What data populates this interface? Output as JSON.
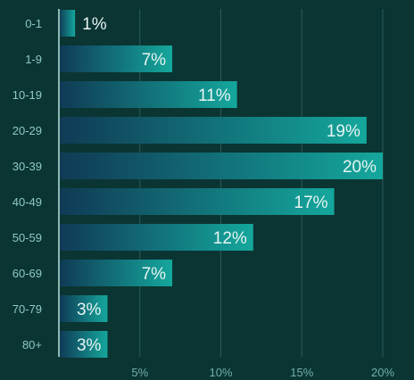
{
  "chart_data": {
    "type": "bar",
    "orientation": "horizontal",
    "categories": [
      "0-1",
      "1-9",
      "10-19",
      "20-29",
      "30-39",
      "40-49",
      "50-59",
      "60-69",
      "70-79",
      "80+"
    ],
    "values": [
      1,
      7,
      11,
      19,
      20,
      17,
      12,
      7,
      3,
      3
    ],
    "value_labels": [
      "1%",
      "7%",
      "11%",
      "19%",
      "20%",
      "17%",
      "12%",
      "7%",
      "3%",
      "3%"
    ],
    "xlim": [
      0,
      20
    ],
    "x_ticks": [
      5,
      10,
      15,
      20
    ],
    "x_tick_labels": [
      "5%",
      "10%",
      "15%",
      "20%"
    ],
    "grid": "vertical",
    "colors": {
      "background": "#0b3533",
      "bar_start": "#103a55",
      "bar_end": "#14a79c"
    }
  }
}
